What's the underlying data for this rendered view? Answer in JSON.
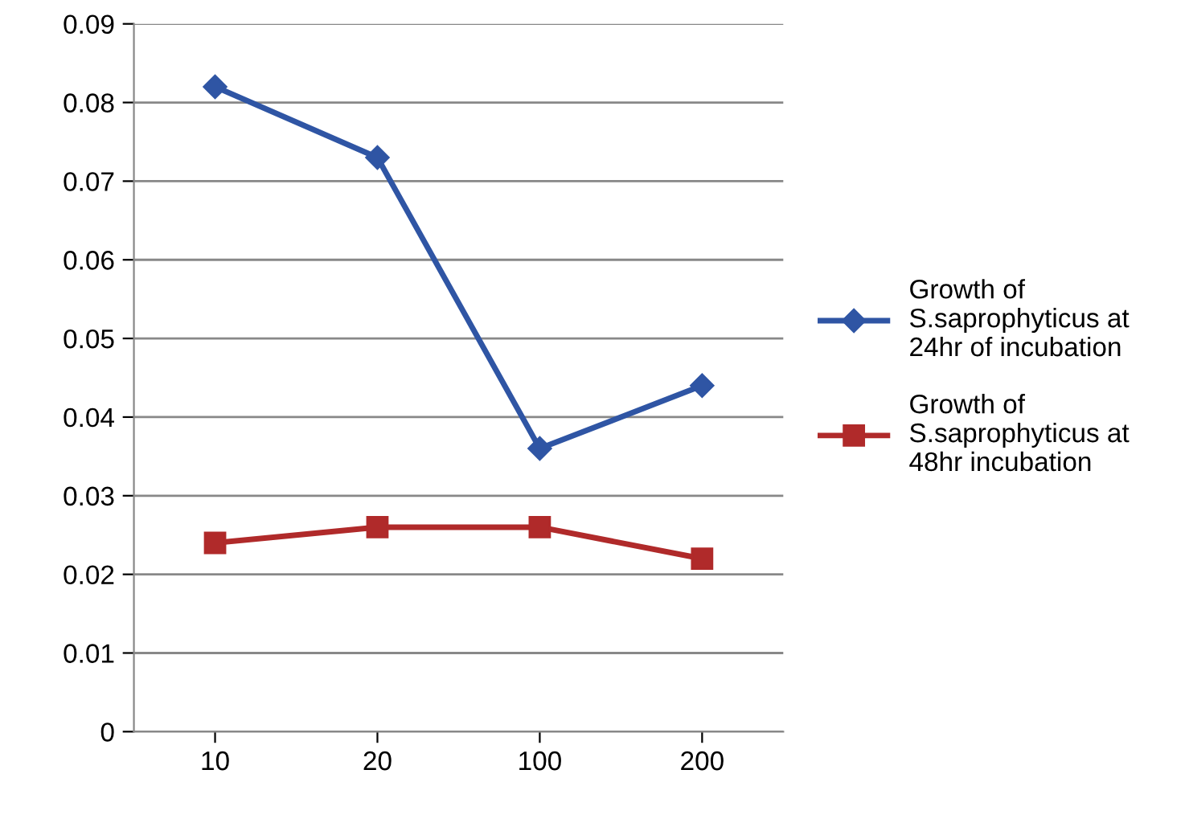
{
  "chart_data": {
    "type": "line",
    "categories": [
      "10",
      "20",
      "100",
      "200"
    ],
    "series": [
      {
        "name": "Growth of\nS.saprophyticus at\n24hr of incubation",
        "color": "#2f55a4",
        "marker": "diamond",
        "values": [
          0.082,
          0.073,
          0.036,
          0.044
        ]
      },
      {
        "name": "Growth of\nS.saprophyticus at\n48hr incubation",
        "color": "#b02a2a",
        "marker": "square",
        "values": [
          0.024,
          0.026,
          0.026,
          0.022
        ]
      }
    ],
    "ylim": [
      0,
      0.09
    ],
    "yticks": [
      0,
      0.01,
      0.02,
      0.03,
      0.04,
      0.05,
      0.06,
      0.07,
      0.08,
      0.09
    ],
    "grid": "y",
    "legend": "right",
    "line_style": "solid"
  }
}
